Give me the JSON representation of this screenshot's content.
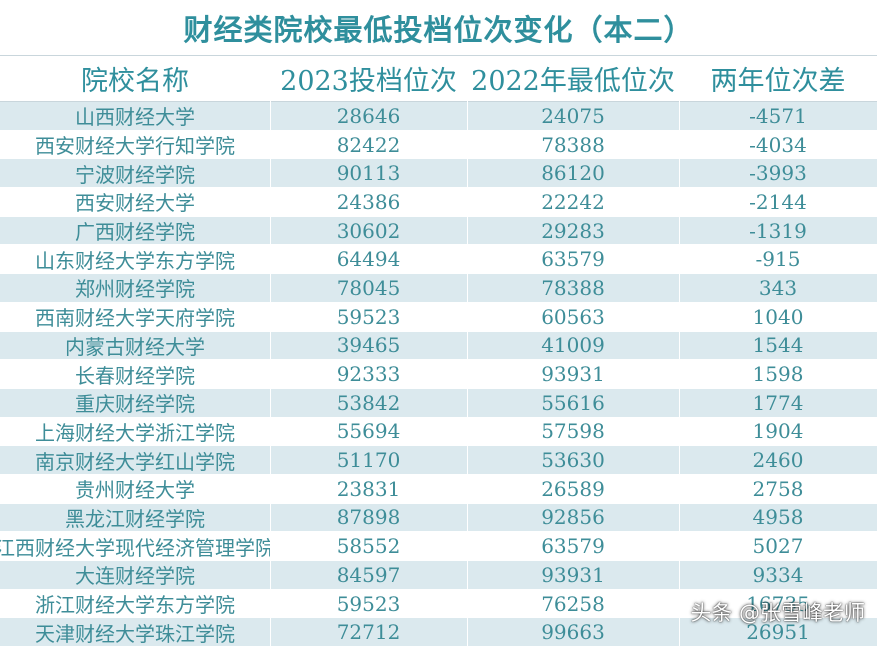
{
  "title": "财经类院校最低投档位次变化（本二）",
  "headers": [
    "院校名称",
    "2023投档位次",
    "2022年最低位次",
    "两年位次差"
  ],
  "rows": [
    [
      "山西财经大学",
      "28646",
      "24075",
      "-4571"
    ],
    [
      "西安财经大学行知学院",
      "82422",
      "78388",
      "-4034"
    ],
    [
      "宁波财经学院",
      "90113",
      "86120",
      "-3993"
    ],
    [
      "西安财经大学",
      "24386",
      "22242",
      "-2144"
    ],
    [
      "广西财经学院",
      "30602",
      "29283",
      "-1319"
    ],
    [
      "山东财经大学东方学院",
      "64494",
      "63579",
      "-915"
    ],
    [
      "郑州财经学院",
      "78045",
      "78388",
      "343"
    ],
    [
      "西南财经大学天府学院",
      "59523",
      "60563",
      "1040"
    ],
    [
      "内蒙古财经大学",
      "39465",
      "41009",
      "1544"
    ],
    [
      "长春财经学院",
      "92333",
      "93931",
      "1598"
    ],
    [
      "重庆财经学院",
      "53842",
      "55616",
      "1774"
    ],
    [
      "上海财经大学浙江学院",
      "55694",
      "57598",
      "1904"
    ],
    [
      "南京财经大学红山学院",
      "51170",
      "53630",
      "2460"
    ],
    [
      "贵州财经大学",
      "23831",
      "26589",
      "2758"
    ],
    [
      "黑龙江财经学院",
      "87898",
      "92856",
      "4958"
    ],
    [
      "江西财经大学现代经济管理学院",
      "58552",
      "63579",
      "5027"
    ],
    [
      "大连财经学院",
      "84597",
      "93931",
      "9334"
    ],
    [
      "浙江财经大学东方学院",
      "59523",
      "76258",
      "16735"
    ],
    [
      "天津财经大学珠江学院",
      "72712",
      "99663",
      "26951"
    ]
  ],
  "watermark": "头条 @张雪峰老师",
  "colors": {
    "text": "#3e8d98",
    "header_text": "#2f8f9d",
    "stripe": "#dbe9ee",
    "background": "#ffffff"
  }
}
